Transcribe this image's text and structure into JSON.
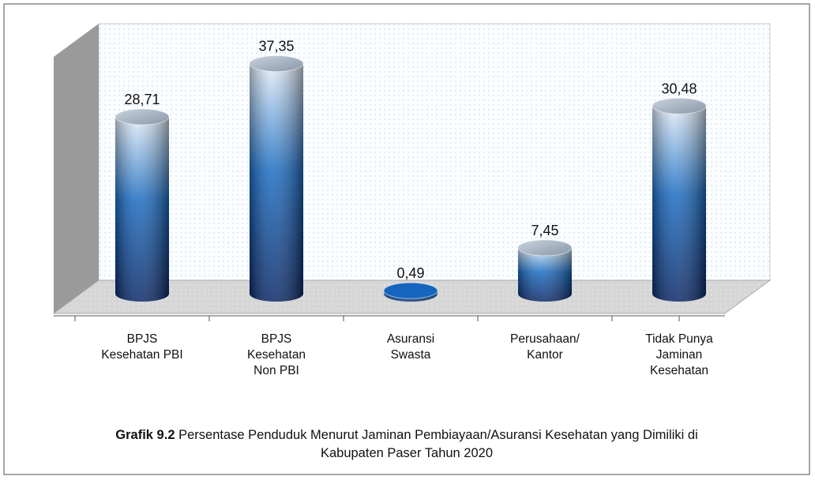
{
  "chart_data": {
    "type": "cylinder-bar",
    "title": {
      "label": "Grafik 9.2",
      "text": "Persentase Penduduk Menurut Jaminan Pembiayaan/Asuransi Kesehatan yang Dimiliki di Kabupaten Paser Tahun 2020"
    },
    "categories": [
      "BPJS Kesehatan PBI",
      "BPJS Kesehatan Non PBI",
      "Asuransi Swasta",
      "Perusahaan/ Kantor",
      "Tidak Punya Jaminan Kesehatan"
    ],
    "values": [
      28.71,
      37.35,
      0.49,
      7.45,
      30.48
    ],
    "value_labels": [
      "28,71",
      "37,35",
      "0,49",
      "7,45",
      "30,48"
    ],
    "color": "#1565c0",
    "ylim": [
      0,
      40
    ]
  }
}
